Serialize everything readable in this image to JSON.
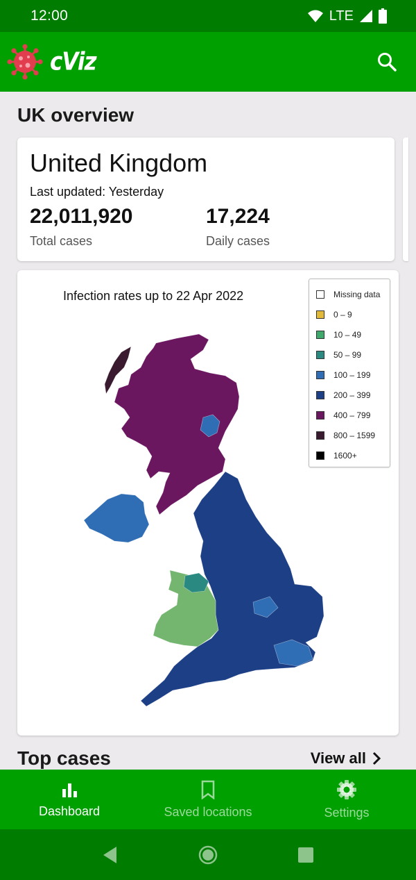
{
  "status_bar": {
    "time": "12:00",
    "network": "LTE"
  },
  "app_bar": {
    "title": "cViz",
    "logo_icon": "virus-icon",
    "action_icon": "search-icon"
  },
  "overview": {
    "section_title": "UK overview",
    "country": "United Kingdom",
    "last_updated": "Last updated: Yesterday",
    "total_cases_value": "22,011,920",
    "total_cases_label": "Total cases",
    "daily_cases_value": "17,224",
    "daily_cases_label": "Daily cases"
  },
  "map": {
    "title": "Infection rates up to 22 Apr 2022",
    "legend": [
      {
        "label": "Missing data",
        "color": "#ffffff"
      },
      {
        "label": "0 – 9",
        "color": "#e3b93a"
      },
      {
        "label": "10 – 49",
        "color": "#3fa86b"
      },
      {
        "label": "50 – 99",
        "color": "#2a8a82"
      },
      {
        "label": "100 – 199",
        "color": "#2f6db5"
      },
      {
        "label": "200 – 399",
        "color": "#1c3f86"
      },
      {
        "label": "400 – 799",
        "color": "#6b1760"
      },
      {
        "label": "800 – 1599",
        "color": "#3a1a2e"
      },
      {
        "label": "1600+",
        "color": "#000000"
      }
    ],
    "region_colors": {
      "scotland": "#6b1760",
      "northern_isles": "#3a1a2e",
      "aberdeen": "#2f6db5",
      "northern_ireland": "#2f6db5",
      "england": "#1c3f86",
      "wales": "#74b56f",
      "cheshire": "#2a8a82",
      "east_hotspot": "#2f6db5"
    }
  },
  "top_cases": {
    "title": "Top cases",
    "view_all": "View all"
  },
  "bottom_nav": {
    "items": [
      {
        "label": "Dashboard",
        "icon": "bar-chart-icon",
        "active": true
      },
      {
        "label": "Saved locations",
        "icon": "bookmark-icon",
        "active": false
      },
      {
        "label": "Settings",
        "icon": "gear-icon",
        "active": false
      }
    ]
  },
  "colors": {
    "status_bar": "#007c00",
    "app_bar": "#00a000",
    "background": "#eceaec"
  }
}
